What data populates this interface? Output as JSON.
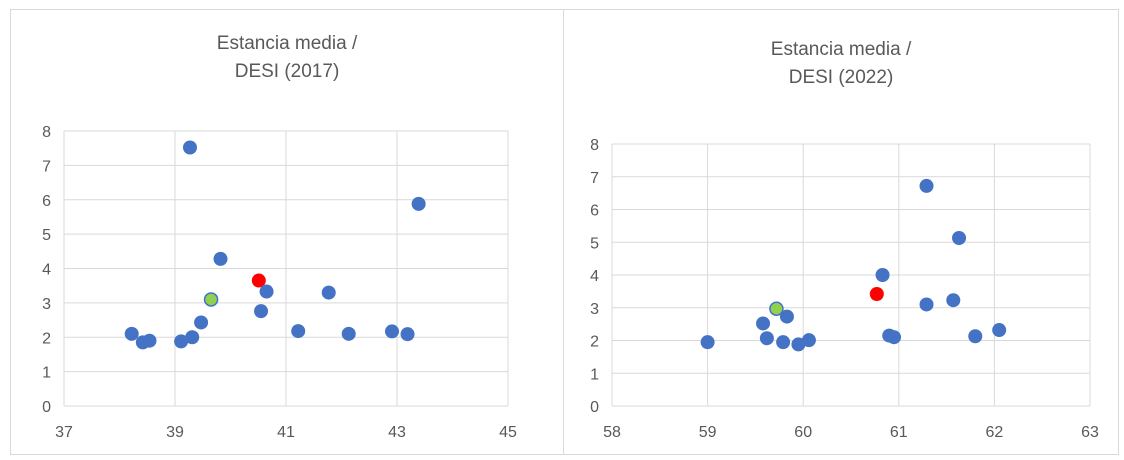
{
  "chart_data": [
    {
      "type": "scatter",
      "title_lines": [
        "Estancia media /",
        "DESI (2017)"
      ],
      "xlabel": "",
      "ylabel": "",
      "xlim": [
        37,
        45
      ],
      "ylim": [
        0,
        8
      ],
      "x_ticks": [
        "37",
        "39",
        "41",
        "43",
        "45"
      ],
      "x_tick_values": [
        37,
        39,
        41,
        43,
        45
      ],
      "y_ticks": [
        "0",
        "1",
        "2",
        "3",
        "4",
        "5",
        "6",
        "7",
        "8"
      ],
      "y_tick_values": [
        0,
        1,
        2,
        3,
        4,
        5,
        6,
        7,
        8
      ],
      "grid": true,
      "legend": "none",
      "colors": {
        "default": "#4472c4",
        "highlight_red": "#ff0000",
        "highlight_green": "#92d050",
        "green_outline": "#4472c4"
      },
      "points": [
        {
          "x": 38.22,
          "y": 2.1,
          "color": "default"
        },
        {
          "x": 38.42,
          "y": 1.85,
          "color": "default"
        },
        {
          "x": 38.54,
          "y": 1.9,
          "color": "default"
        },
        {
          "x": 39.11,
          "y": 1.88,
          "color": "default"
        },
        {
          "x": 39.27,
          "y": 7.52,
          "color": "default"
        },
        {
          "x": 39.31,
          "y": 2.0,
          "color": "default"
        },
        {
          "x": 39.47,
          "y": 2.43,
          "color": "default"
        },
        {
          "x": 39.65,
          "y": 3.1,
          "color": "highlight_green"
        },
        {
          "x": 39.82,
          "y": 4.28,
          "color": "default"
        },
        {
          "x": 40.51,
          "y": 3.65,
          "color": "highlight_red"
        },
        {
          "x": 40.55,
          "y": 2.76,
          "color": "default"
        },
        {
          "x": 40.65,
          "y": 3.33,
          "color": "default"
        },
        {
          "x": 41.22,
          "y": 2.18,
          "color": "default"
        },
        {
          "x": 41.77,
          "y": 3.3,
          "color": "default"
        },
        {
          "x": 42.13,
          "y": 2.1,
          "color": "default"
        },
        {
          "x": 42.91,
          "y": 2.17,
          "color": "default"
        },
        {
          "x": 43.19,
          "y": 2.09,
          "color": "default"
        },
        {
          "x": 43.39,
          "y": 5.88,
          "color": "default"
        }
      ]
    },
    {
      "type": "scatter",
      "title_lines": [
        "Estancia media /",
        "DESI (2022)"
      ],
      "xlabel": "",
      "ylabel": "",
      "xlim": [
        58,
        63
      ],
      "ylim": [
        0,
        8
      ],
      "x_ticks": [
        "58",
        "59",
        "60",
        "61",
        "62",
        "63"
      ],
      "x_tick_values": [
        58,
        59,
        60,
        61,
        62,
        63
      ],
      "y_ticks": [
        "0",
        "1",
        "2",
        "3",
        "4",
        "5",
        "6",
        "7",
        "8"
      ],
      "y_tick_values": [
        0,
        1,
        2,
        3,
        4,
        5,
        6,
        7,
        8
      ],
      "grid": true,
      "legend": "none",
      "colors": {
        "default": "#4472c4",
        "highlight_red": "#ff0000",
        "highlight_green": "#92d050",
        "green_outline": "#4472c4"
      },
      "points": [
        {
          "x": 59.0,
          "y": 1.95,
          "color": "default"
        },
        {
          "x": 59.58,
          "y": 2.52,
          "color": "default"
        },
        {
          "x": 59.62,
          "y": 2.07,
          "color": "default"
        },
        {
          "x": 59.72,
          "y": 2.97,
          "color": "highlight_green"
        },
        {
          "x": 59.79,
          "y": 1.95,
          "color": "default"
        },
        {
          "x": 59.83,
          "y": 2.73,
          "color": "default"
        },
        {
          "x": 59.95,
          "y": 1.88,
          "color": "default"
        },
        {
          "x": 60.06,
          "y": 2.01,
          "color": "default"
        },
        {
          "x": 60.77,
          "y": 3.42,
          "color": "highlight_red"
        },
        {
          "x": 60.83,
          "y": 4.0,
          "color": "default"
        },
        {
          "x": 60.9,
          "y": 2.15,
          "color": "default"
        },
        {
          "x": 60.95,
          "y": 2.1,
          "color": "default"
        },
        {
          "x": 61.29,
          "y": 6.72,
          "color": "default"
        },
        {
          "x": 61.29,
          "y": 3.1,
          "color": "default"
        },
        {
          "x": 61.57,
          "y": 3.23,
          "color": "default"
        },
        {
          "x": 61.63,
          "y": 5.13,
          "color": "default"
        },
        {
          "x": 61.8,
          "y": 2.13,
          "color": "default"
        },
        {
          "x": 62.05,
          "y": 2.32,
          "color": "default"
        }
      ]
    }
  ]
}
